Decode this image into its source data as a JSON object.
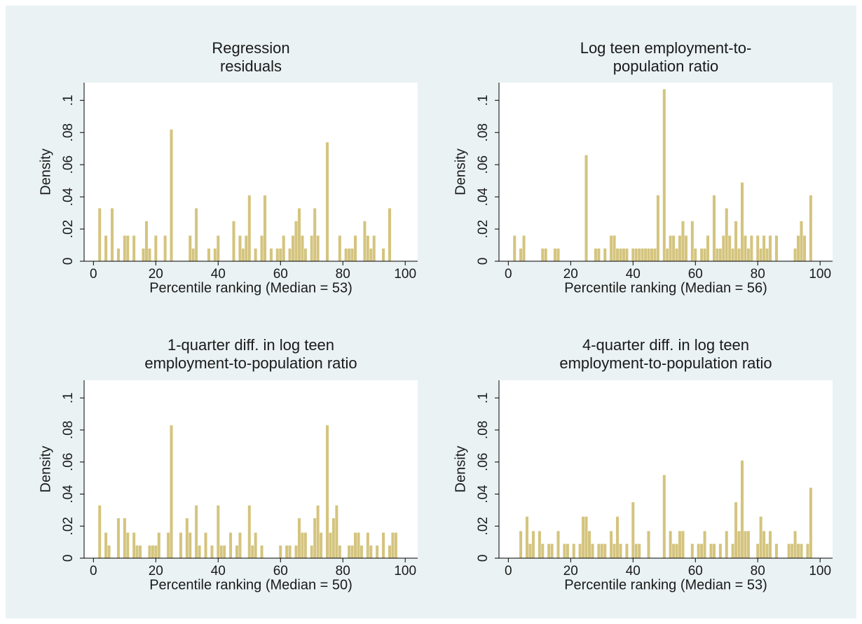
{
  "chart_data": [
    {
      "type": "bar",
      "title": [
        "Regression",
        "residuals"
      ],
      "xlabel": "Percentile ranking (Median = 53)",
      "ylabel": "Density",
      "color": "#d4c47e",
      "x": [
        2,
        4,
        6,
        8,
        10,
        11,
        13,
        16,
        17,
        18,
        20,
        23,
        25,
        31,
        32,
        33,
        37,
        39,
        40,
        45,
        47,
        48,
        49,
        50,
        52,
        54,
        55,
        57,
        59,
        60,
        61,
        63,
        64,
        65,
        66,
        67,
        68,
        70,
        71,
        72,
        75,
        79,
        81,
        82,
        83,
        84,
        87,
        88,
        89,
        90,
        93,
        95
      ],
      "values": [
        0.033,
        0.016,
        0.033,
        0.008,
        0.016,
        0.016,
        0.016,
        0.008,
        0.025,
        0.008,
        0.016,
        0.016,
        0.082,
        0.016,
        0.008,
        0.033,
        0.008,
        0.008,
        0.016,
        0.025,
        0.016,
        0.008,
        0.016,
        0.041,
        0.008,
        0.016,
        0.041,
        0.008,
        0.008,
        0.008,
        0.016,
        0.008,
        0.016,
        0.025,
        0.033,
        0.016,
        0.008,
        0.016,
        0.033,
        0.016,
        0.074,
        0.016,
        0.008,
        0.008,
        0.008,
        0.016,
        0.025,
        0.016,
        0.008,
        0.016,
        0.008,
        0.033
      ],
      "xlim": [
        -3,
        104
      ],
      "ylim": [
        0,
        0.111
      ],
      "xticks": [
        0,
        20,
        40,
        60,
        80,
        100
      ],
      "yticks": [
        0,
        {
          "value": 0.02,
          "label": ".02"
        },
        {
          "value": 0.04,
          "label": ".04"
        },
        {
          "value": 0.06,
          "label": ".06"
        },
        {
          "value": 0.08,
          "label": ".08"
        },
        {
          "value": 0.1,
          "label": ".1"
        }
      ]
    },
    {
      "type": "bar",
      "title": [
        "Log teen employment-to-",
        "population ratio"
      ],
      "xlabel": "Percentile ranking (Median = 56)",
      "ylabel": "Density",
      "color": "#d4c47e",
      "x": [
        2,
        4,
        5,
        11,
        12,
        15,
        16,
        25,
        28,
        29,
        31,
        33,
        34,
        35,
        36,
        37,
        38,
        40,
        41,
        42,
        43,
        44,
        45,
        46,
        47,
        48,
        50,
        51,
        52,
        53,
        54,
        55,
        56,
        57,
        59,
        60,
        62,
        63,
        64,
        66,
        67,
        68,
        69,
        70,
        71,
        72,
        73,
        74,
        75,
        76,
        77,
        78,
        80,
        81,
        82,
        83,
        84,
        86,
        92,
        93,
        94,
        95,
        97
      ],
      "values": [
        0.016,
        0.008,
        0.016,
        0.008,
        0.008,
        0.008,
        0.008,
        0.066,
        0.008,
        0.008,
        0.008,
        0.016,
        0.016,
        0.008,
        0.008,
        0.008,
        0.008,
        0.008,
        0.008,
        0.008,
        0.008,
        0.008,
        0.008,
        0.008,
        0.008,
        0.041,
        0.107,
        0.008,
        0.016,
        0.016,
        0.008,
        0.016,
        0.025,
        0.016,
        0.025,
        0.008,
        0.008,
        0.008,
        0.016,
        0.041,
        0.008,
        0.008,
        0.016,
        0.033,
        0.016,
        0.008,
        0.025,
        0.008,
        0.049,
        0.016,
        0.008,
        0.016,
        0.016,
        0.008,
        0.016,
        0.008,
        0.016,
        0.016,
        0.008,
        0.016,
        0.025,
        0.016,
        0.041
      ],
      "xlim": [
        -3,
        104
      ],
      "ylim": [
        0,
        0.111
      ],
      "xticks": [
        0,
        20,
        40,
        60,
        80,
        100
      ],
      "yticks": [
        0,
        {
          "value": 0.02,
          "label": ".02"
        },
        {
          "value": 0.04,
          "label": ".04"
        },
        {
          "value": 0.06,
          "label": ".06"
        },
        {
          "value": 0.08,
          "label": ".08"
        },
        {
          "value": 0.1,
          "label": ".1"
        }
      ]
    },
    {
      "type": "bar",
      "title": [
        "1-quarter diff. in log teen",
        "employment-to-population ratio"
      ],
      "xlabel": "Percentile ranking (Median = 50)",
      "ylabel": "Density",
      "color": "#d4c47e",
      "x": [
        2,
        4,
        5,
        8,
        10,
        11,
        13,
        14,
        15,
        18,
        19,
        20,
        21,
        24,
        25,
        28,
        30,
        31,
        33,
        34,
        36,
        38,
        40,
        41,
        42,
        44,
        46,
        47,
        50,
        51,
        52,
        54,
        60,
        62,
        63,
        65,
        66,
        67,
        68,
        70,
        71,
        72,
        73,
        75,
        76,
        77,
        78,
        79,
        82,
        83,
        84,
        85,
        86,
        88,
        89,
        91,
        93,
        95,
        96,
        97
      ],
      "values": [
        0.033,
        0.016,
        0.008,
        0.025,
        0.025,
        0.016,
        0.016,
        0.008,
        0.008,
        0.008,
        0.008,
        0.008,
        0.016,
        0.016,
        0.083,
        0.016,
        0.025,
        0.016,
        0.033,
        0.008,
        0.016,
        0.008,
        0.033,
        0.008,
        0.008,
        0.016,
        0.008,
        0.016,
        0.033,
        0.008,
        0.016,
        0.008,
        0.008,
        0.008,
        0.008,
        0.008,
        0.025,
        0.016,
        0.016,
        0.008,
        0.025,
        0.033,
        0.016,
        0.083,
        0.016,
        0.025,
        0.033,
        0.008,
        0.008,
        0.008,
        0.016,
        0.016,
        0.008,
        0.016,
        0.008,
        0.008,
        0.016,
        0.008,
        0.016,
        0.016
      ],
      "xlim": [
        -3,
        104
      ],
      "ylim": [
        0,
        0.111
      ],
      "xticks": [
        0,
        20,
        40,
        60,
        80,
        100
      ],
      "yticks": [
        0,
        {
          "value": 0.02,
          "label": ".02"
        },
        {
          "value": 0.04,
          "label": ".04"
        },
        {
          "value": 0.06,
          "label": ".06"
        },
        {
          "value": 0.08,
          "label": ".08"
        },
        {
          "value": 0.1,
          "label": ".1"
        }
      ]
    },
    {
      "type": "bar",
      "title": [
        "4-quarter diff. in log teen",
        "employment-to-population ratio"
      ],
      "xlabel": "Percentile ranking (Median = 53)",
      "ylabel": "Density",
      "color": "#d4c47e",
      "x": [
        4,
        6,
        7,
        8,
        10,
        11,
        13,
        14,
        16,
        18,
        19,
        21,
        23,
        24,
        25,
        26,
        27,
        29,
        30,
        31,
        33,
        34,
        35,
        36,
        38,
        40,
        41,
        42,
        45,
        50,
        52,
        53,
        54,
        55,
        56,
        59,
        61,
        62,
        63,
        65,
        66,
        68,
        70,
        72,
        73,
        74,
        75,
        76,
        77,
        80,
        81,
        82,
        83,
        84,
        86,
        90,
        91,
        92,
        93,
        94,
        96,
        97
      ],
      "values": [
        0.017,
        0.026,
        0.009,
        0.017,
        0.017,
        0.009,
        0.009,
        0.009,
        0.017,
        0.009,
        0.009,
        0.009,
        0.009,
        0.026,
        0.026,
        0.017,
        0.009,
        0.009,
        0.009,
        0.009,
        0.017,
        0.009,
        0.026,
        0.009,
        0.009,
        0.035,
        0.009,
        0.009,
        0.017,
        0.052,
        0.017,
        0.009,
        0.009,
        0.017,
        0.017,
        0.009,
        0.009,
        0.009,
        0.017,
        0.009,
        0.009,
        0.009,
        0.017,
        0.009,
        0.035,
        0.017,
        0.061,
        0.017,
        0.017,
        0.009,
        0.026,
        0.017,
        0.009,
        0.017,
        0.009,
        0.009,
        0.009,
        0.017,
        0.009,
        0.009,
        0.009,
        0.044
      ],
      "xlim": [
        -3,
        104
      ],
      "ylim": [
        0,
        0.111
      ],
      "xticks": [
        0,
        20,
        40,
        60,
        80,
        100
      ],
      "yticks": [
        0,
        {
          "value": 0.02,
          "label": ".02"
        },
        {
          "value": 0.04,
          "label": ".04"
        },
        {
          "value": 0.06,
          "label": ".06"
        },
        {
          "value": 0.08,
          "label": ".08"
        },
        {
          "value": 0.1,
          "label": ".1"
        }
      ]
    }
  ]
}
